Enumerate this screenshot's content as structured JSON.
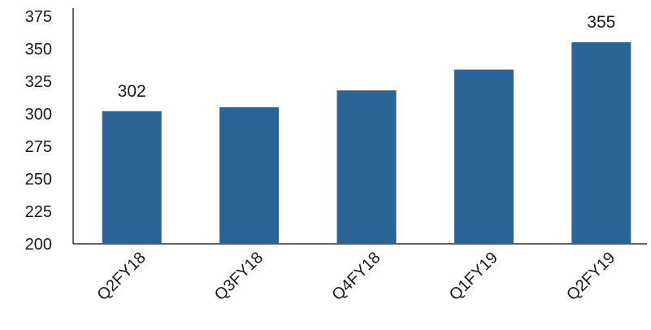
{
  "chart_data": {
    "type": "bar",
    "categories": [
      "Q2FY18",
      "Q3FY18",
      "Q4FY18",
      "Q1FY19",
      "Q2FY19"
    ],
    "values": [
      302,
      305,
      318,
      334,
      355
    ],
    "data_labels": [
      "302",
      "",
      "",
      "",
      "355"
    ],
    "ylim": [
      200,
      375
    ],
    "yticks": [
      200,
      225,
      250,
      275,
      300,
      325,
      350,
      375
    ],
    "grid": false,
    "bar_color": "#2a6496",
    "title": "",
    "xlabel": "",
    "ylabel": ""
  }
}
